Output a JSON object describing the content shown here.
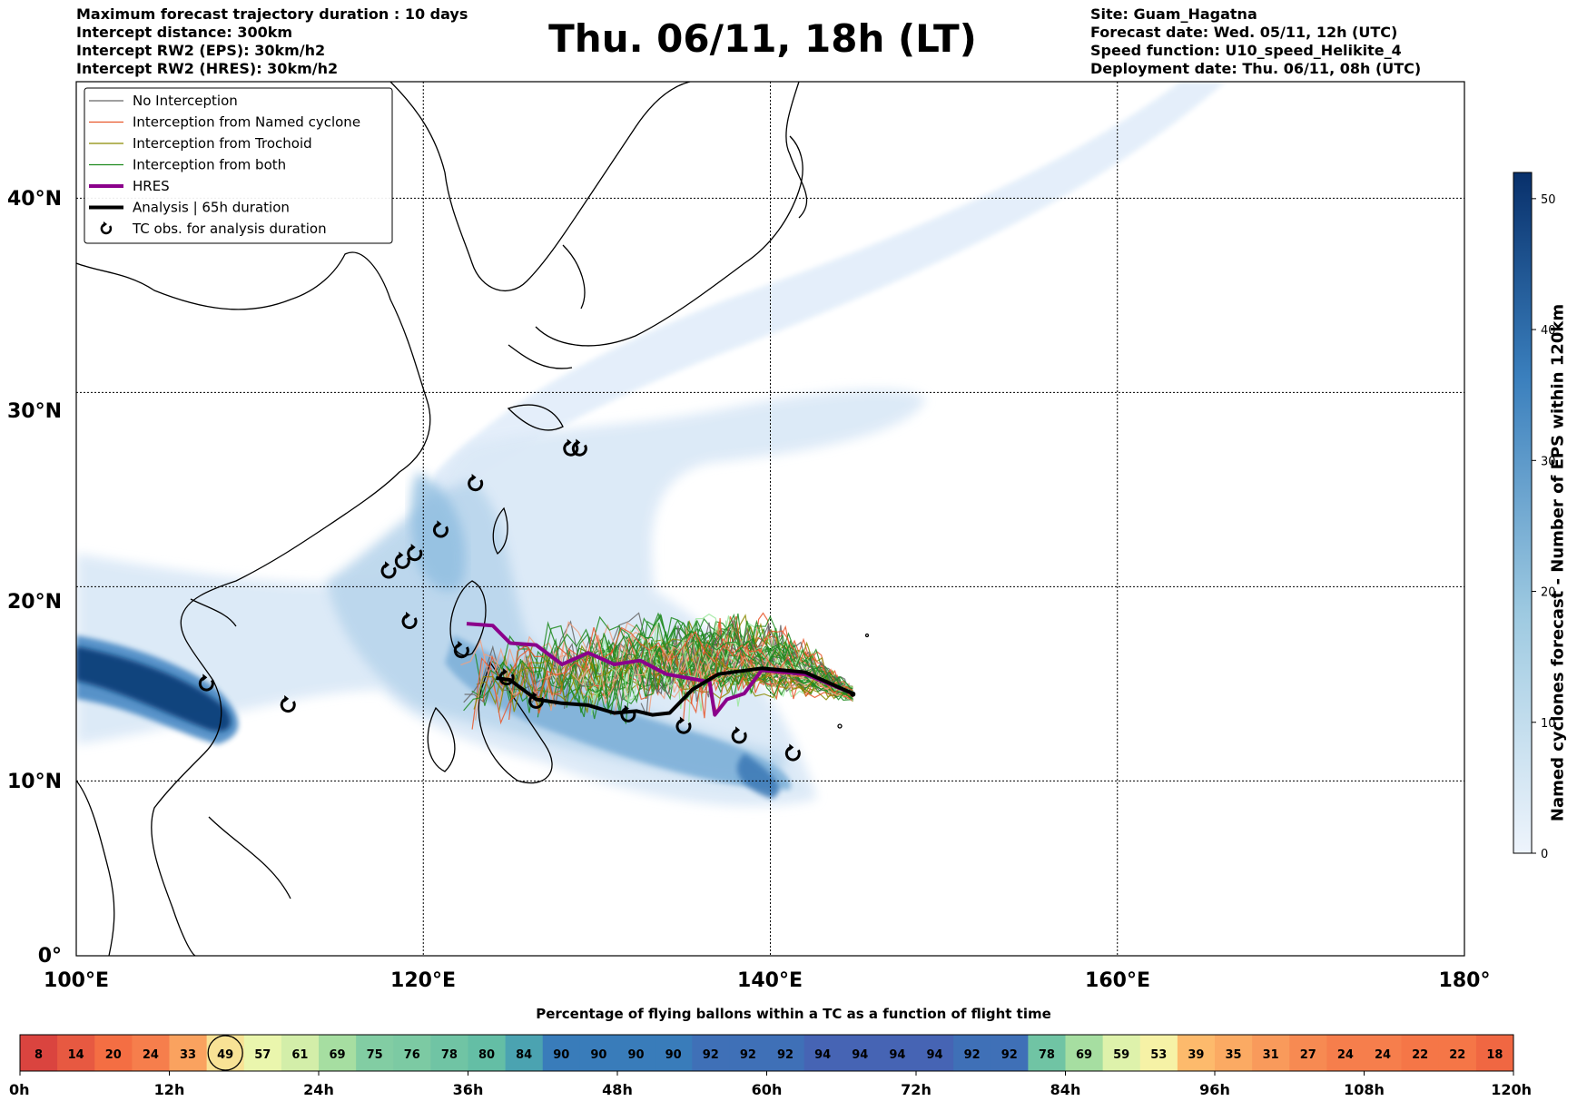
{
  "header_left": [
    "Maximum forecast trajectory duration : 10 days",
    "Intercept distance: 300km",
    "Intercept RW2 (EPS):  30km/h2",
    "Intercept RW2 (HRES): 30km/h2"
  ],
  "header_right": [
    "Site: Guam_Hagatna",
    "Forecast date: Wed. 05/11, 12h (UTC)",
    "Speed function: U10_speed_Helikite_4",
    "Deployment date: Thu. 06/11, 08h (UTC)"
  ],
  "title": "Thu. 06/11, 18h (LT)",
  "map": {
    "lon_range": [
      100,
      180
    ],
    "lat_range": [
      0,
      45
    ],
    "lon_ticks": [
      "100°E",
      "120°E",
      "140°E",
      "160°E",
      "180°"
    ],
    "lat_ticks": [
      "0°",
      "10°N",
      "20°N",
      "30°N",
      "40°N"
    ],
    "grid": "dotted",
    "legend_position": "top-left",
    "legend": [
      {
        "label": "No Interception",
        "color": "#666666",
        "style": "thin"
      },
      {
        "label": "Interception from Named cyclone",
        "color": "#e8562a",
        "style": "thin"
      },
      {
        "label": "Interception from Trochoid",
        "color": "#8a8a00",
        "style": "thin"
      },
      {
        "label": "Interception from both",
        "color": "#1f8a1f",
        "style": "thin"
      },
      {
        "label": "HRES",
        "color": "#8b008b",
        "style": "thick"
      },
      {
        "label": "Analysis | 65h duration",
        "color": "#000000",
        "style": "thick"
      },
      {
        "label": "TC obs. for analysis duration",
        "color": "#000000",
        "style": "marker",
        "icon": "cyclone-icon"
      }
    ],
    "site": {
      "lon": 144.75,
      "lat": 13.47
    },
    "tc_obs": [
      [
        107.5,
        14.0
      ],
      [
        112.2,
        12.9
      ],
      [
        118.0,
        19.8
      ],
      [
        118.8,
        20.3
      ],
      [
        119.5,
        20.7
      ],
      [
        119.2,
        17.2
      ],
      [
        121.0,
        21.9
      ],
      [
        123.0,
        24.3
      ],
      [
        122.2,
        15.7
      ],
      [
        124.8,
        14.3
      ],
      [
        126.5,
        13.1
      ],
      [
        131.8,
        12.4
      ],
      [
        135.0,
        11.8
      ],
      [
        138.2,
        11.3
      ],
      [
        141.3,
        10.4
      ],
      [
        128.5,
        26.1
      ],
      [
        129.0,
        26.1
      ]
    ],
    "hres_track": [
      [
        144.75,
        13.5
      ],
      [
        142,
        14.5
      ],
      [
        139.5,
        14.7
      ],
      [
        138.5,
        13.5
      ],
      [
        137.5,
        13.2
      ],
      [
        136.8,
        12.4
      ],
      [
        136.5,
        14.1
      ],
      [
        134,
        14.5
      ],
      [
        132.5,
        15.2
      ],
      [
        131,
        15.0
      ],
      [
        129.5,
        15.6
      ],
      [
        128,
        15.0
      ],
      [
        126.5,
        16.0
      ],
      [
        125,
        16.1
      ],
      [
        124,
        17.0
      ],
      [
        122.5,
        17.1
      ]
    ],
    "analysis_track": [
      [
        144.75,
        13.5
      ],
      [
        142,
        14.6
      ],
      [
        139.5,
        14.8
      ],
      [
        137,
        14.5
      ],
      [
        135.5,
        13.7
      ],
      [
        134.2,
        12.5
      ],
      [
        133.2,
        12.4
      ],
      [
        132.3,
        12.6
      ],
      [
        131,
        12.5
      ],
      [
        129.5,
        12.9
      ],
      [
        128,
        13.0
      ],
      [
        126.5,
        13.2
      ],
      [
        125,
        14.2
      ],
      [
        124.2,
        14.3
      ]
    ]
  },
  "colorbar": {
    "label": "Named cyclones forecast - Number of EPS within 120km",
    "range": [
      0,
      52
    ],
    "ticks": [
      "0",
      "10",
      "20",
      "30",
      "40",
      "50"
    ],
    "colors": [
      "#e6f0fa",
      "#08306b"
    ]
  },
  "time_bar": {
    "title": "Percentage of flying ballons within a TC as a function of flight time",
    "values": [
      8,
      14,
      20,
      24,
      33,
      49,
      57,
      61,
      69,
      75,
      76,
      78,
      80,
      84,
      90,
      90,
      90,
      90,
      92,
      92,
      92,
      94,
      94,
      94,
      94,
      92,
      92,
      78,
      69,
      59,
      53,
      39,
      35,
      31,
      27,
      24,
      24,
      22,
      22,
      18
    ],
    "highlight_index": 5,
    "ticks": [
      "0h",
      "12h",
      "24h",
      "36h",
      "48h",
      "60h",
      "72h",
      "84h",
      "96h",
      "108h",
      "120h"
    ]
  }
}
